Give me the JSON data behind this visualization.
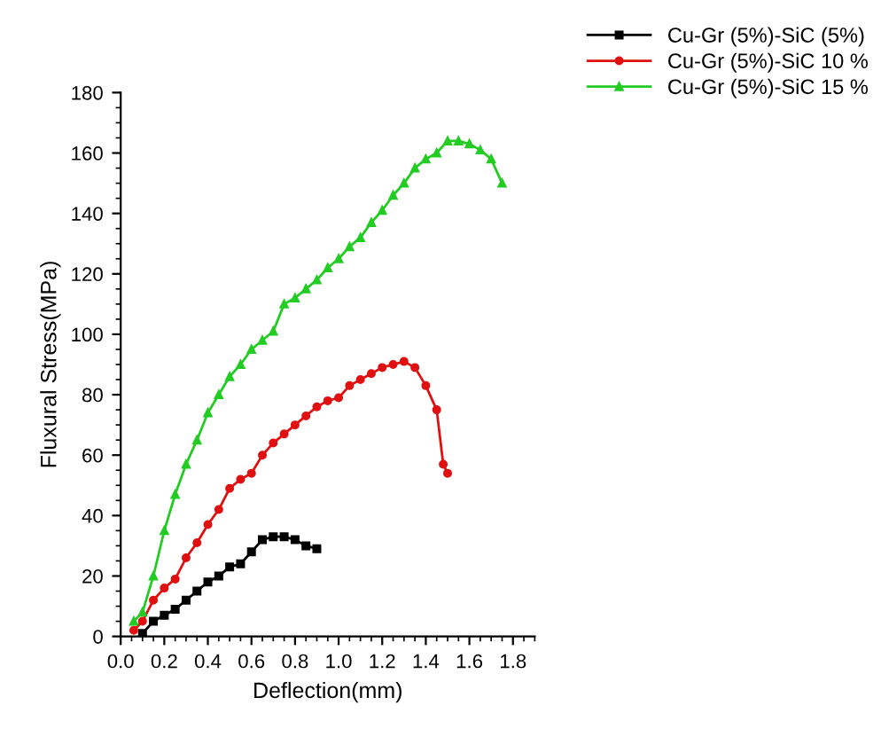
{
  "chart_data": {
    "type": "line",
    "xlabel": "Deflection(mm)",
    "ylabel": "Fluxural Stress(MPa)",
    "xlim": [
      0,
      1.9
    ],
    "xticks": [
      {
        "value": 0,
        "label": "0.0"
      },
      0.2,
      0.4,
      0.6,
      0.8,
      {
        "value": 1,
        "label": "1.0"
      },
      1.2,
      1.4,
      1.6,
      1.8
    ],
    "ylim": [
      0,
      180
    ],
    "yticks": [
      0,
      20,
      40,
      60,
      80,
      100,
      120,
      140,
      160,
      180
    ],
    "grid": false,
    "legend": "top right",
    "line_style": "solid",
    "series": [
      {
        "name": "Cu-Gr (5%)-SiC (5%)",
        "color": "#000000",
        "marker": "square",
        "x": [
          0.1,
          0.15,
          0.2,
          0.25,
          0.3,
          0.35,
          0.4,
          0.45,
          0.5,
          0.55,
          0.6,
          0.65,
          0.7,
          0.75,
          0.8,
          0.85,
          0.9
        ],
        "values": [
          1,
          5,
          7,
          9,
          12,
          15,
          18,
          20,
          23,
          24,
          28,
          32,
          33,
          33,
          32,
          30,
          29
        ]
      },
      {
        "name": "Cu-Gr (5%)-SiC 10 %",
        "color": "#e01010",
        "marker": "circle",
        "x": [
          0.06,
          0.1,
          0.15,
          0.2,
          0.25,
          0.3,
          0.35,
          0.4,
          0.45,
          0.5,
          0.55,
          0.6,
          0.65,
          0.7,
          0.75,
          0.8,
          0.85,
          0.9,
          0.95,
          1.0,
          1.05,
          1.1,
          1.15,
          1.2,
          1.25,
          1.3,
          1.35,
          1.4,
          1.45,
          1.48,
          1.5
        ],
        "values": [
          2,
          5,
          12,
          16,
          19,
          26,
          31,
          37,
          42,
          49,
          52,
          54,
          60,
          64,
          67,
          70,
          73,
          76,
          78,
          79,
          83,
          85,
          87,
          89,
          90,
          91,
          89,
          83,
          75,
          57,
          54
        ]
      },
      {
        "name": "Cu-Gr (5%)-SiC 15 %",
        "color": "#22cc22",
        "marker": "triangle",
        "x": [
          0.06,
          0.1,
          0.15,
          0.2,
          0.25,
          0.3,
          0.35,
          0.4,
          0.45,
          0.5,
          0.55,
          0.6,
          0.65,
          0.7,
          0.75,
          0.8,
          0.85,
          0.9,
          0.95,
          1.0,
          1.05,
          1.1,
          1.15,
          1.2,
          1.25,
          1.3,
          1.35,
          1.4,
          1.45,
          1.5,
          1.55,
          1.6,
          1.65,
          1.7,
          1.75
        ],
        "values": [
          5,
          8,
          20,
          35,
          47,
          57,
          65,
          74,
          80,
          86,
          90,
          95,
          98,
          101,
          110,
          112,
          115,
          118,
          122,
          125,
          129,
          132,
          137,
          141,
          146,
          150,
          155,
          158,
          160,
          164,
          164,
          163,
          161,
          158,
          150
        ]
      }
    ]
  }
}
